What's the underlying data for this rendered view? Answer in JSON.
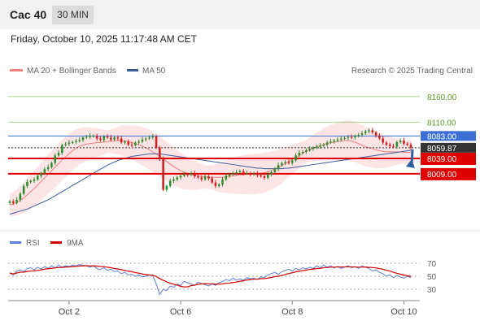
{
  "header": {
    "instrument": "Cac 40",
    "timeframe": "30 MIN"
  },
  "datetime": "Friday, October 10, 2025 11:17:48 AM CET",
  "legend": {
    "ma20": "MA 20 + Bollinger Bands",
    "ma50": "MA 50",
    "credit": "Research © 2025 Trading Central",
    "rsi": "RSI",
    "rsi_ma": "9MA"
  },
  "colors": {
    "ma20": "#f08080",
    "ma50": "#3a5e9c",
    "bollinger": "#fde0e0",
    "candle_up": "#2e8b2e",
    "candle_down": "#cc1f1f",
    "resistance": "#a8d58a",
    "pivot": "#3b6fd6",
    "support": "#e00000",
    "rsi": "#5b7fd6",
    "rsi_ma": "#d40000",
    "arrow": "#2c5fa0"
  },
  "levels": [
    {
      "value": 8160.0,
      "label": "8160.00",
      "type": "resistance"
    },
    {
      "value": 8110.0,
      "label": "8110.00",
      "type": "resistance"
    },
    {
      "value": 8083.0,
      "label": "8083.00",
      "type": "pivot"
    },
    {
      "value": 8059.87,
      "label": "8059.87",
      "type": "last"
    },
    {
      "value": 8039.0,
      "label": "8039.00",
      "type": "support"
    },
    {
      "value": 8009.0,
      "label": "8009.00",
      "type": "support"
    }
  ],
  "chart_data": {
    "type": "candlestick",
    "price_range": [
      7923,
      8190
    ],
    "x_ticks": [
      {
        "label": "Oct 2",
        "bar": 17
      },
      {
        "label": "Oct 6",
        "bar": 49
      },
      {
        "label": "Oct 8",
        "bar": 81
      },
      {
        "label": "Oct 10",
        "bar": 113
      }
    ],
    "closes": [
      7955,
      7952,
      7958,
      7970,
      7985,
      7993,
      7995,
      7998,
      8005,
      8010,
      8018,
      8022,
      8030,
      8045,
      8050,
      8065,
      8067,
      8070,
      8071,
      8073,
      8075,
      8080,
      8081,
      8083,
      8083,
      8078,
      8075,
      8082,
      8080,
      8076,
      8080,
      8078,
      8070,
      8072,
      8066,
      8065,
      8070,
      8072,
      8076,
      8078,
      8080,
      8082,
      8060,
      8038,
      7978,
      7985,
      7995,
      7998,
      8002,
      8005,
      8008,
      8007,
      8010,
      8004,
      8002,
      7998,
      8004,
      8000,
      7992,
      7985,
      7988,
      7998,
      8005,
      8008,
      8010,
      8012,
      8014,
      8010,
      8010,
      8008,
      8009,
      8006,
      8004,
      8001,
      8008,
      8012,
      8018,
      8026,
      8030,
      8032,
      8030,
      8035,
      8045,
      8050,
      8052,
      8055,
      8058,
      8060,
      8062,
      8064,
      8066,
      8070,
      8072,
      8074,
      8076,
      8078,
      8079,
      8081,
      8080,
      8083,
      8085,
      8088,
      8092,
      8094,
      8090,
      8084,
      8078,
      8070,
      8066,
      8063,
      8062,
      8071,
      8074,
      8068,
      8066,
      8060
    ],
    "ma20": [
      7948,
      7950,
      7953,
      7957,
      7962,
      7968,
      7974,
      7980,
      7987,
      7994,
      8001,
      8008,
      8015,
      8022,
      8029,
      8036,
      8042,
      8048,
      8054,
      8059,
      8063,
      8065,
      8067,
      8068,
      8069,
      8070,
      8070,
      8071,
      8072,
      8073,
      8073,
      8074,
      8074,
      8073,
      8072,
      8070,
      8068,
      8066,
      8063,
      8060,
      8056,
      8052,
      8048,
      8043,
      8038,
      8033,
      8028,
      8023,
      8019,
      8015,
      8012,
      8010,
      8008,
      8006,
      8005,
      8004,
      8003,
      8002,
      8002,
      8002,
      8002,
      8002,
      8003,
      8004,
      8005,
      8006,
      8007,
      8007,
      8008,
      8008,
      8008,
      8009,
      8010,
      8011,
      8013,
      8015,
      8018,
      8021,
      8025,
      8029,
      8033,
      8037,
      8041,
      8045,
      8049,
      8053,
      8056,
      8059,
      8062,
      8064,
      8066,
      8068,
      8070,
      8071,
      8072,
      8073,
      8074,
      8074,
      8073,
      8071,
      8068,
      8065,
      8062,
      8060,
      8058,
      8056,
      8054,
      8053,
      8052,
      8052,
      8052,
      8052,
      8052,
      8051,
      8051,
      8051
    ],
    "ma50": [
      7930,
      7932,
      7934,
      7936,
      7938,
      7940,
      7943,
      7946,
      7949,
      7952,
      7955,
      7958,
      7962,
      7966,
      7970,
      7974,
      7978,
      7982,
      7986,
      7990,
      7994,
      7998,
      8002,
      8006,
      8010,
      8014,
      8018,
      8022,
      8026,
      8029,
      8032,
      8035,
      8037,
      8039,
      8041,
      8043,
      8044,
      8045,
      8046,
      8047,
      8048,
      8048,
      8048,
      8048,
      8047,
      8046,
      8045,
      8044,
      8043,
      8042,
      8041,
      8040,
      8039,
      8038,
      8037,
      8036,
      8035,
      8034,
      8033,
      8032,
      8031,
      8030,
      8029,
      8028,
      8027,
      8026,
      8025,
      8024,
      8023,
      8022,
      8021,
      8020,
      8020,
      8019,
      8019,
      8019,
      8019,
      8019,
      8019,
      8020,
      8020,
      8021,
      8022,
      8023,
      8024,
      8025,
      8026,
      8027,
      8028,
      8029,
      8030,
      8031,
      8032,
      8033,
      8034,
      8035,
      8036,
      8037,
      8038,
      8039,
      8040,
      8041,
      8042,
      8043,
      8044,
      8045,
      8046,
      8047,
      8048,
      8049,
      8050,
      8051,
      8052,
      8053,
      8054,
      8055
    ],
    "rsi": [
      55,
      52,
      58,
      60,
      57,
      62,
      63,
      60,
      64,
      61,
      65,
      62,
      66,
      63,
      67,
      64,
      66,
      65,
      67,
      66,
      68,
      67,
      66,
      64,
      66,
      62,
      60,
      63,
      59,
      61,
      57,
      58,
      54,
      56,
      52,
      53,
      50,
      52,
      49,
      50,
      52,
      51,
      38,
      22,
      30,
      28,
      35,
      33,
      38,
      36,
      42,
      40,
      38,
      36,
      41,
      39,
      37,
      35,
      38,
      36,
      40,
      42,
      45,
      43,
      47,
      44,
      46,
      44,
      48,
      46,
      47,
      45,
      49,
      48,
      52,
      54,
      56,
      53,
      57,
      59,
      61,
      58,
      62,
      60,
      63,
      61,
      64,
      62,
      66,
      63,
      67,
      64,
      66,
      63,
      65,
      62,
      64,
      66,
      63,
      65,
      62,
      66,
      64,
      62,
      58,
      60,
      56,
      54,
      50,
      52,
      48,
      51,
      49,
      47,
      50,
      48
    ],
    "rsi_ticks": [
      70,
      50,
      30
    ]
  }
}
